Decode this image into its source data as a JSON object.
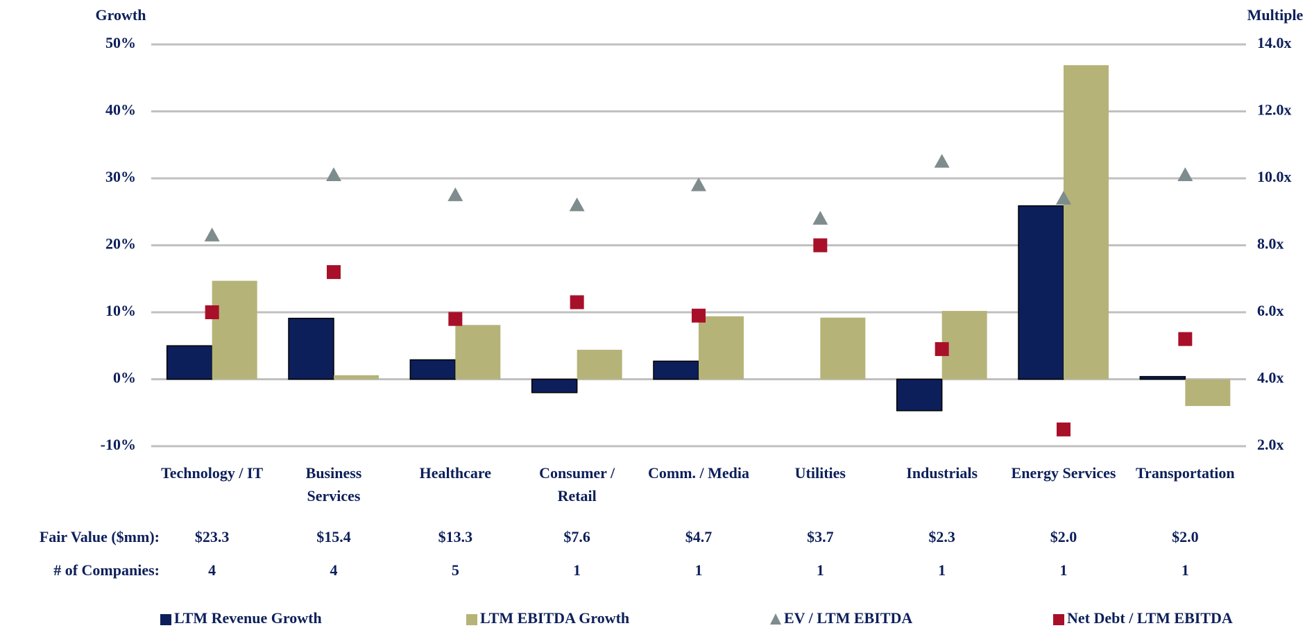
{
  "chart_data": {
    "type": "bar",
    "y_label": "Growth",
    "y2_label": "Multiple",
    "categories": [
      "Technology / IT",
      "Business\nServices",
      "Healthcare",
      "Consumer /\nRetail",
      "Comm. / Media",
      "Utilities",
      "Industrials",
      "Energy Services",
      "Transportation"
    ],
    "series": [
      {
        "name": "LTM Revenue Growth",
        "type": "bar",
        "color": "#0c1f5a",
        "values": [
          5.0,
          9.1,
          2.9,
          -2.0,
          2.7,
          0,
          -4.7,
          25.9,
          0.4
        ]
      },
      {
        "name": "LTM EBITDA Growth",
        "type": "bar",
        "color": "#b5b378",
        "values": [
          14.7,
          0.6,
          8.1,
          4.4,
          9.4,
          9.2,
          10.2,
          46.9,
          -4.0
        ]
      },
      {
        "name": "EV / LTM EBITDA",
        "type": "triangle",
        "axis": "y2",
        "color": "#7f8c8d",
        "values": [
          8.3,
          10.1,
          9.5,
          9.2,
          9.8,
          8.8,
          10.5,
          9.4,
          10.1
        ]
      },
      {
        "name": "Net Debt / LTM EBITDA",
        "type": "square",
        "axis": "y2",
        "color": "#a8102a",
        "values": [
          6.0,
          7.2,
          5.8,
          6.3,
          5.9,
          8.0,
          4.9,
          2.5,
          5.2
        ]
      }
    ],
    "ylim": [
      -10,
      50
    ],
    "yticks": [
      {
        "value": -10,
        "label": "-10%"
      },
      {
        "value": 0,
        "label": "0%"
      },
      {
        "value": 10,
        "label": "10%"
      },
      {
        "value": 20,
        "label": "20%"
      },
      {
        "value": 30,
        "label": "30%"
      },
      {
        "value": 40,
        "label": "40%"
      },
      {
        "value": 50,
        "label": "50%"
      }
    ],
    "y2lim": [
      2,
      14
    ],
    "y2ticks": [
      {
        "value": 2,
        "label": "2.0x"
      },
      {
        "value": 4,
        "label": "4.0x"
      },
      {
        "value": 6,
        "label": "6.0x"
      },
      {
        "value": 8,
        "label": "8.0x"
      },
      {
        "value": 10,
        "label": "10.0x"
      },
      {
        "value": 12,
        "label": "12.0x"
      },
      {
        "value": 14,
        "label": "14.0x"
      }
    ],
    "grid": true,
    "legend": "bottom",
    "fair_value": {
      "label": "Fair Value ($mm):",
      "values": [
        23.3,
        15.4,
        13.3,
        7.6,
        4.7,
        3.7,
        2.3,
        2.0,
        2.0
      ],
      "value_labels": [
        "$23.3",
        "$15.4",
        "$13.3",
        "$7.6",
        "$4.7",
        "$3.7",
        "$2.3",
        "$2.0",
        "$2.0"
      ]
    },
    "companies": {
      "label": "# of Companies:",
      "values": [
        4,
        4,
        5,
        1,
        1,
        1,
        1,
        1,
        1
      ]
    }
  }
}
